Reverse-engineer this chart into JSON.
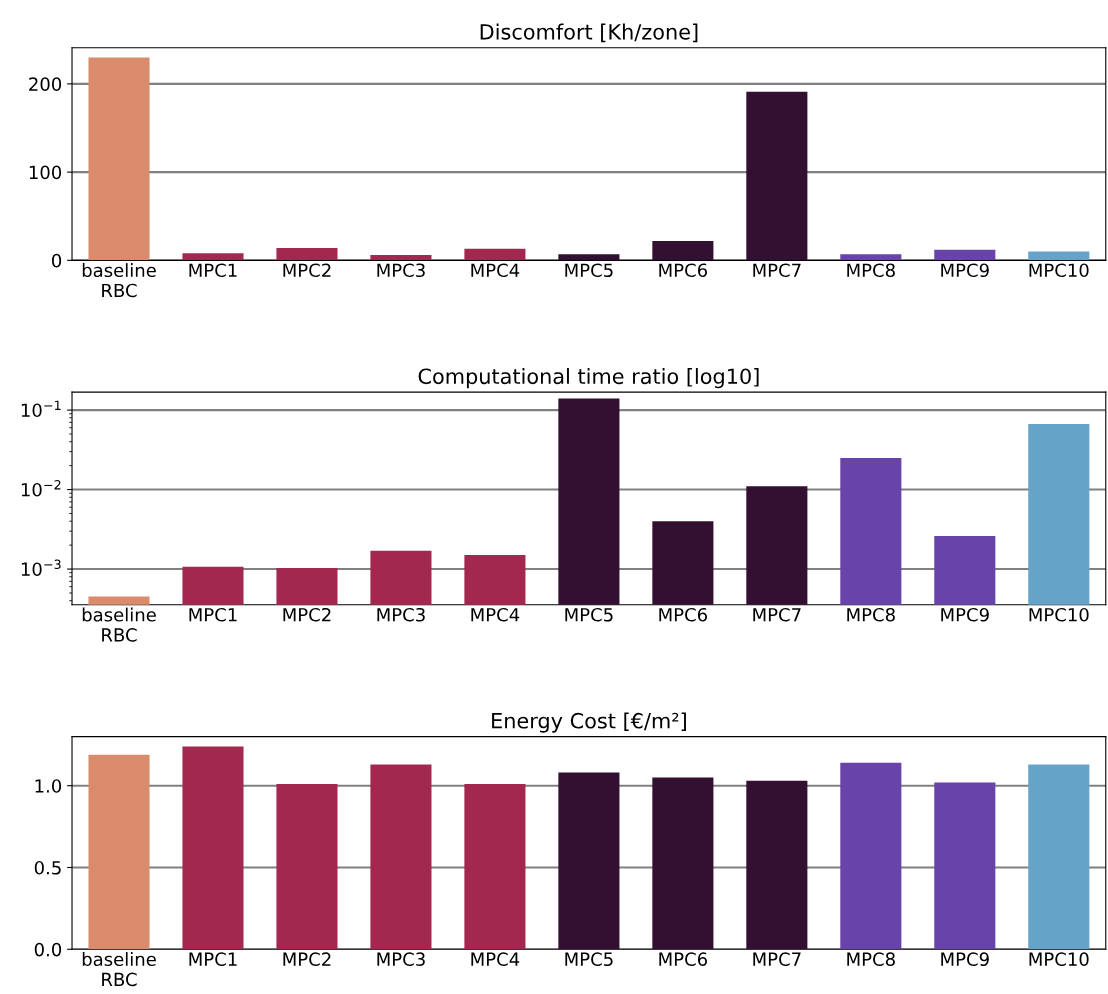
{
  "chart_data": [
    {
      "type": "bar",
      "title": "Discomfort [Kh/zone]",
      "categories": [
        "baseline\nRBC",
        "MPC1",
        "MPC2",
        "MPC3",
        "MPC4",
        "MPC5",
        "MPC6",
        "MPC7",
        "MPC8",
        "MPC9",
        "MPC10"
      ],
      "values": [
        230,
        8,
        14,
        6,
        13,
        7,
        22,
        191,
        7,
        12,
        10
      ],
      "colors": [
        "#d98b6b",
        "#a3284f",
        "#a3284f",
        "#a3284f",
        "#a3284f",
        "#330f32",
        "#330f32",
        "#330f32",
        "#6843a9",
        "#6843a9",
        "#66a3c8"
      ],
      "ylim": [
        0,
        241
      ],
      "yticks": [
        0,
        100,
        200
      ],
      "grid": "y"
    },
    {
      "type": "bar",
      "title": "Computational time ratio [log10]",
      "categories": [
        "baseline\nRBC",
        "MPC1",
        "MPC2",
        "MPC3",
        "MPC4",
        "MPC5",
        "MPC6",
        "MPC7",
        "MPC8",
        "MPC9",
        "MPC10"
      ],
      "values": [
        0.00045,
        0.00107,
        0.00103,
        0.0017,
        0.0015,
        0.14,
        0.004,
        0.011,
        0.025,
        0.0026,
        0.067
      ],
      "colors": [
        "#d98b6b",
        "#a3284f",
        "#a3284f",
        "#a3284f",
        "#a3284f",
        "#330f32",
        "#330f32",
        "#330f32",
        "#6843a9",
        "#6843a9",
        "#66a3c8"
      ],
      "log": true,
      "ylim": [
        0.000355,
        0.168
      ],
      "yticks": [
        {
          "value": 0.001,
          "label": "10$^{−3}$"
        },
        {
          "value": 0.01,
          "label": "10$^{−2}$"
        },
        {
          "value": 0.1,
          "label": "10$^{−1}$"
        }
      ],
      "grid": "y"
    },
    {
      "type": "bar",
      "title": "Energy Cost [€/m²]",
      "categories": [
        "baseline\nRBC",
        "MPC1",
        "MPC2",
        "MPC3",
        "MPC4",
        "MPC5",
        "MPC6",
        "MPC7",
        "MPC8",
        "MPC9",
        "MPC10"
      ],
      "values": [
        1.19,
        1.24,
        1.01,
        1.13,
        1.01,
        1.08,
        1.05,
        1.03,
        1.14,
        1.02,
        1.13
      ],
      "colors": [
        "#d98b6b",
        "#a3284f",
        "#a3284f",
        "#a3284f",
        "#a3284f",
        "#330f32",
        "#330f32",
        "#330f32",
        "#6843a9",
        "#6843a9",
        "#66a3c8"
      ],
      "ylim": [
        0,
        1.3
      ],
      "yticks": [
        {
          "value": 0,
          "label": "0.0"
        },
        0.5,
        {
          "value": 1,
          "label": "1.0"
        }
      ],
      "grid": "y"
    }
  ]
}
